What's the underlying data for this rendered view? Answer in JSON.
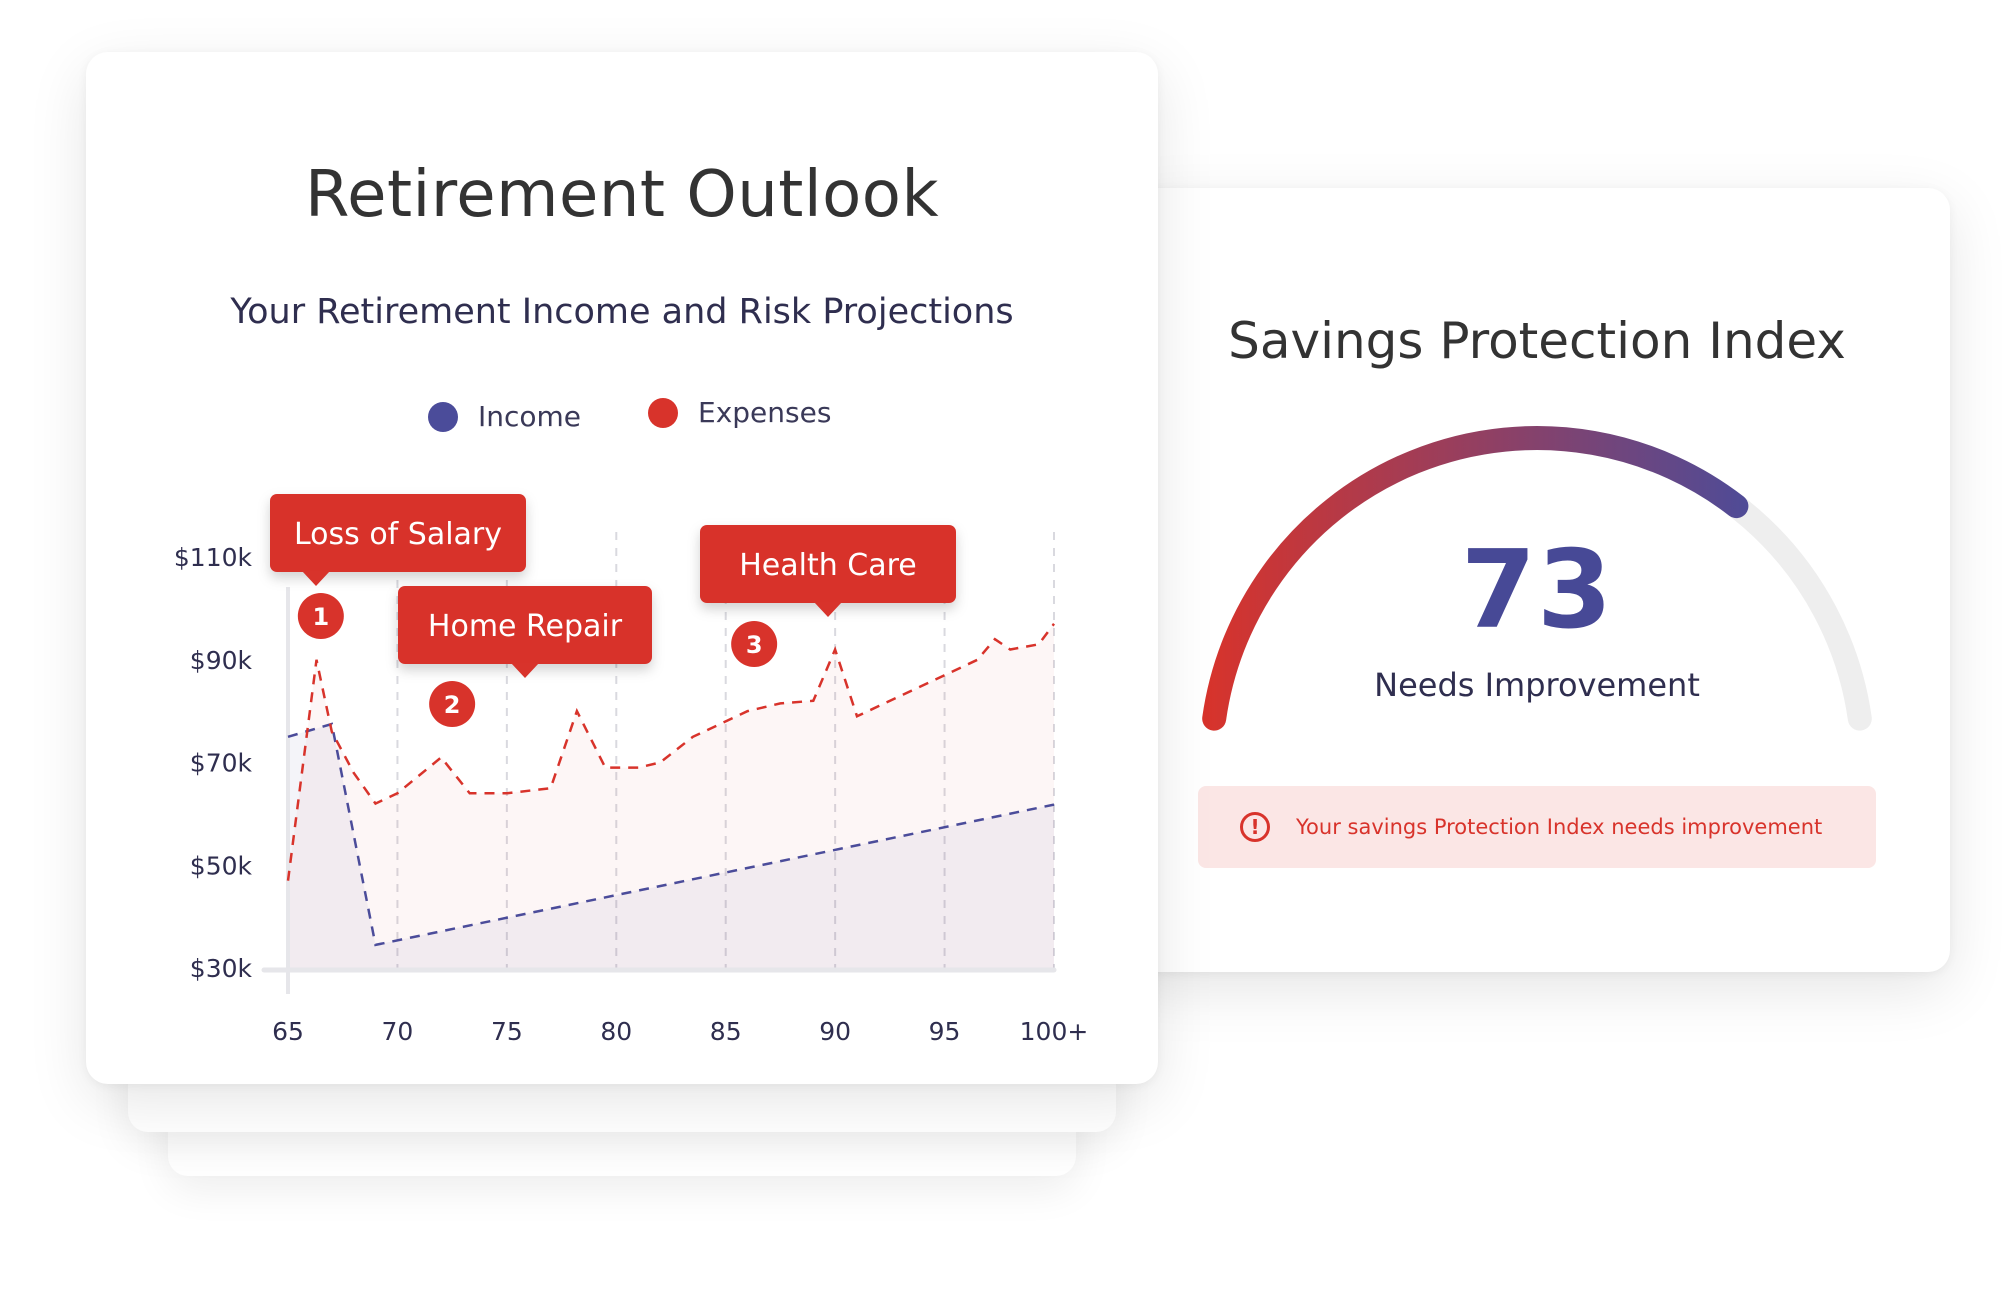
{
  "retirement_outlook": {
    "title": "Retirement Outlook",
    "subtitle": "Your Retirement Income and Risk Projections",
    "legend": [
      {
        "label": "Income",
        "color": "#4b4c9a"
      },
      {
        "label": "Expenses",
        "color": "#d8332b"
      }
    ],
    "callouts": [
      {
        "label": "Loss of Salary",
        "badge": "1"
      },
      {
        "label": "Home Repair",
        "badge": "2"
      },
      {
        "label": "Health Care",
        "badge": "3"
      }
    ]
  },
  "savings_protection": {
    "title": "Savings Protection Index",
    "score": "73",
    "status": "Needs Improvement",
    "alert_text": "Your savings Protection Index needs improvement",
    "alert_icon": "exclamation-circle-icon",
    "gauge_value": 73,
    "gauge_colors": [
      "#d8332b",
      "#4b4c9a"
    ],
    "track_color": "#eeeeee"
  },
  "chart_data": {
    "type": "line",
    "x_tick_labels": [
      "65",
      "70",
      "75",
      "80",
      "85",
      "90",
      "95",
      "100+"
    ],
    "y_tick_labels": [
      "$110k",
      "$90k",
      "$70k",
      "$50k",
      "$30k"
    ],
    "xlim": [
      65,
      100
    ],
    "ylim": [
      30000,
      110000
    ],
    "grid": true,
    "legend_position": "top-center",
    "series": [
      {
        "name": "Income",
        "color": "#4b4c9a",
        "style": "dashed",
        "points": [
          [
            65,
            75000
          ],
          [
            67,
            77500
          ],
          [
            69,
            34500
          ],
          [
            100,
            61800
          ]
        ]
      },
      {
        "name": "Expenses",
        "color": "#d8332b",
        "style": "dashed",
        "points": [
          [
            65,
            47000
          ],
          [
            66.3,
            90000
          ],
          [
            67,
            76000
          ],
          [
            68,
            68000
          ],
          [
            69,
            62000
          ],
          [
            70,
            64000
          ],
          [
            72,
            71000
          ],
          [
            73.3,
            64000
          ],
          [
            75,
            64000
          ],
          [
            77,
            65000
          ],
          [
            78.2,
            80000
          ],
          [
            79.5,
            69000
          ],
          [
            81,
            69000
          ],
          [
            82,
            70000
          ],
          [
            83.5,
            75000
          ],
          [
            85,
            78000
          ],
          [
            86,
            80000
          ],
          [
            87.5,
            81500
          ],
          [
            89,
            82000
          ],
          [
            90,
            92000
          ],
          [
            91,
            79000
          ],
          [
            93,
            83000
          ],
          [
            95,
            87000
          ],
          [
            96.5,
            90000
          ],
          [
            97.3,
            94000
          ],
          [
            98,
            92000
          ],
          [
            99.3,
            93000
          ],
          [
            100,
            97000
          ]
        ]
      }
    ],
    "annotations": [
      {
        "label": "Loss of Salary",
        "number": "1",
        "x": 66.5
      },
      {
        "label": "Home Repair",
        "number": "2",
        "x": 72.5
      },
      {
        "label": "Health Care",
        "number": "3",
        "x": 86.3
      }
    ]
  }
}
